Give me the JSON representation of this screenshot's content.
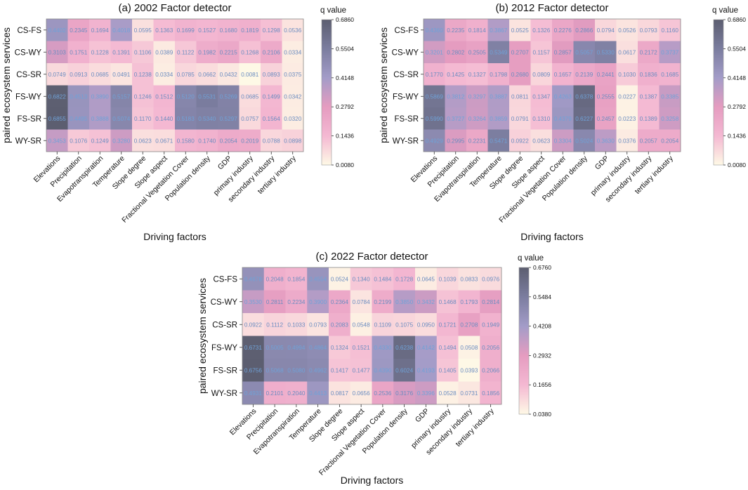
{
  "rows": [
    "CS-FS",
    "CS-WY",
    "CS-SR",
    "FS-WY",
    "FS-SR",
    "WY-SR"
  ],
  "columns": [
    "Elevations",
    "Precipitation",
    "Evapotranspiration",
    "Temperature",
    "Slope degree",
    "Slope aspect",
    "Fractional Vegetation Cover",
    "Population density",
    "GDP",
    "primary industry",
    "secondary industry",
    "tertiary industry"
  ],
  "x_axis_label": "Driving factors",
  "y_axis_label": "paired ecosystem services",
  "colorbar_label": "q value",
  "colors": {
    "scale": [
      "#fef9e6",
      "#f4b8d2",
      "#e59cc0",
      "#a39cc8",
      "#7b7d9f",
      "#5c5e70"
    ],
    "cell_text": "#6fa2d8",
    "cell_text_on_light": "#6a8cc0"
  },
  "chart_data": [
    {
      "type": "heatmap",
      "title": "(a) 2002 Factor detector",
      "rows": [
        "CS-FS",
        "CS-WY",
        "CS-SR",
        "FS-WY",
        "FS-SR",
        "WY-SR"
      ],
      "columns": [
        "Elevations",
        "Precipitation",
        "Evapotranspiration",
        "Temperature",
        "Slope degree",
        "Slope aspect",
        "Fractional Vegetation Cover",
        "Population density",
        "GDP",
        "primary industry",
        "secondary industry",
        "tertiary industry"
      ],
      "xlabel": "Driving factors",
      "ylabel": "paired ecosystem services",
      "colorbar": {
        "label": "q value",
        "min": 0.008,
        "max": 0.686,
        "ticks": [
          "0.6860",
          "0.5504",
          "0.4148",
          "0.2792",
          "0.1436",
          "0.0080"
        ]
      },
      "values": [
        [
          "0.4402",
          "0.2345",
          "0.1694",
          "0.4018",
          "0.0595",
          "0.1363",
          "0.1699",
          "0.1527",
          "0.1680",
          "0.1819",
          "0.1298",
          "0.0536"
        ],
        [
          "0.3103",
          "0.1751",
          "0.1228",
          "0.1391",
          "0.1106",
          "0.0389",
          "0.1122",
          "0.1982",
          "0.2215",
          "0.1268",
          "0.2106",
          "0.0334"
        ],
        [
          "0.0749",
          "0.0913",
          "0.0685",
          "0.0491",
          "0.1238",
          "0.0334",
          "0.0785",
          "0.0662",
          "0.0432",
          "0.0081",
          "0.0893",
          "0.0375"
        ],
        [
          "0.6822",
          "0.4513",
          "0.3890",
          "0.5157",
          "0.1246",
          "0.1512",
          "0.5120",
          "0.5531",
          "0.5269",
          "0.0685",
          "0.1499",
          "0.0342"
        ],
        [
          "0.6855",
          "0.4495",
          "0.3888",
          "0.5074",
          "0.1170",
          "0.1440",
          "0.5183",
          "0.5340",
          "0.5297",
          "0.0757",
          "0.1564",
          "0.0320"
        ],
        [
          "0.3453",
          "0.1076",
          "0.1249",
          "0.3280",
          "0.0623",
          "0.0671",
          "0.1580",
          "0.1740",
          "0.2054",
          "0.2019",
          "0.0788",
          "0.0898"
        ]
      ]
    },
    {
      "type": "heatmap",
      "title": "(b) 2012 Factor detector",
      "rows": [
        "CS-FS",
        "CS-WY",
        "CS-SR",
        "FS-WY",
        "FS-SR",
        "WY-SR"
      ],
      "columns": [
        "Elevations",
        "Precipitation",
        "Evapotranspiration",
        "Temperature",
        "Slope degree",
        "Slope aspect",
        "Fractional Vegetation Cover",
        "Population density",
        "GDP",
        "primary industry",
        "secondary industry",
        "tertiary industry"
      ],
      "xlabel": "Driving factors",
      "ylabel": "paired ecosystem services",
      "colorbar": {
        "label": "q value",
        "min": 0.008,
        "max": 0.686,
        "ticks": [
          "0.6860",
          "0.5504",
          "0.4148",
          "0.2792",
          "0.1436",
          "0.0080"
        ]
      },
      "values": [
        [
          "0.4360",
          "0.2235",
          "0.1814",
          "0.3867",
          "0.0525",
          "0.1326",
          "0.2276",
          "0.2866",
          "0.0794",
          "0.0526",
          "0.0793",
          "0.1160"
        ],
        [
          "0.3201",
          "0.2802",
          "0.2505",
          "0.5349",
          "0.2707",
          "0.1157",
          "0.2857",
          "0.5057",
          "0.5330",
          "0.0617",
          "0.2172",
          "0.3737"
        ],
        [
          "0.1770",
          "0.1425",
          "0.1327",
          "0.1798",
          "0.2680",
          "0.0809",
          "0.1657",
          "0.2139",
          "0.2441",
          "0.1030",
          "0.1836",
          "0.1685"
        ],
        [
          "0.5869",
          "0.3812",
          "0.3297",
          "0.3887",
          "0.0811",
          "0.1347",
          "0.4263",
          "0.6378",
          "0.2555",
          "0.0227",
          "0.1387",
          "0.3385"
        ],
        [
          "0.5990",
          "0.3727",
          "0.3264",
          "0.3859",
          "0.0791",
          "0.1310",
          "0.4379",
          "0.6227",
          "0.2457",
          "0.0223",
          "0.1389",
          "0.3258"
        ],
        [
          "0.4929",
          "0.2995",
          "0.2231",
          "0.5471",
          "0.0922",
          "0.0623",
          "0.3304",
          "0.5024",
          "0.3630",
          "0.0376",
          "0.2057",
          "0.2054"
        ]
      ]
    },
    {
      "type": "heatmap",
      "title": "(c) 2022 Factor detector",
      "rows": [
        "CS-FS",
        "CS-WY",
        "CS-SR",
        "FS-WY",
        "FS-SR",
        "WY-SR"
      ],
      "columns": [
        "Elevations",
        "Precipitation",
        "Evapotranspiration",
        "Temperature",
        "Slope degree",
        "Slope aspect",
        "Fractional Vegetation Cover",
        "Population density",
        "GDP",
        "primary industry",
        "secondary industry",
        "tertiary industry"
      ],
      "xlabel": "Driving factors",
      "ylabel": "paired ecosystem services",
      "colorbar": {
        "label": "q value",
        "min": 0.038,
        "max": 0.676,
        "ticks": [
          "0.6760",
          "0.5484",
          "0.4208",
          "0.2932",
          "0.1656",
          "0.0380"
        ]
      },
      "values": [
        [
          "0.4678",
          "0.2048",
          "0.1854",
          "0.4554",
          "0.0524",
          "0.1340",
          "0.1484",
          "0.1728",
          "0.0645",
          "0.1039",
          "0.0833",
          "0.0976"
        ],
        [
          "0.3530",
          "0.2811",
          "0.2234",
          "0.3900",
          "0.2364",
          "0.0784",
          "0.2199",
          "0.3850",
          "0.3432",
          "0.1468",
          "0.1793",
          "0.2814"
        ],
        [
          "0.0922",
          "0.1112",
          "0.1033",
          "0.0793",
          "0.2083",
          "0.0548",
          "0.1109",
          "0.1075",
          "0.0950",
          "0.1721",
          "0.2708",
          "0.1949"
        ],
        [
          "0.6731",
          "0.5005",
          "0.4994",
          "0.4864",
          "0.1324",
          "0.1521",
          "0.4330",
          "0.6238",
          "0.4142",
          "0.1494",
          "0.0508",
          "0.2056"
        ],
        [
          "0.6756",
          "0.5068",
          "0.5080",
          "0.4962",
          "0.1417",
          "0.1477",
          "0.4390",
          "0.6024",
          "0.4193",
          "0.1405",
          "0.0393",
          "0.2066"
        ],
        [
          "0.4931",
          "0.2101",
          "0.2040",
          "0.4413",
          "0.0817",
          "0.0656",
          "0.2536",
          "0.3176",
          "0.3396",
          "0.0528",
          "0.0731",
          "0.1856"
        ]
      ]
    }
  ]
}
